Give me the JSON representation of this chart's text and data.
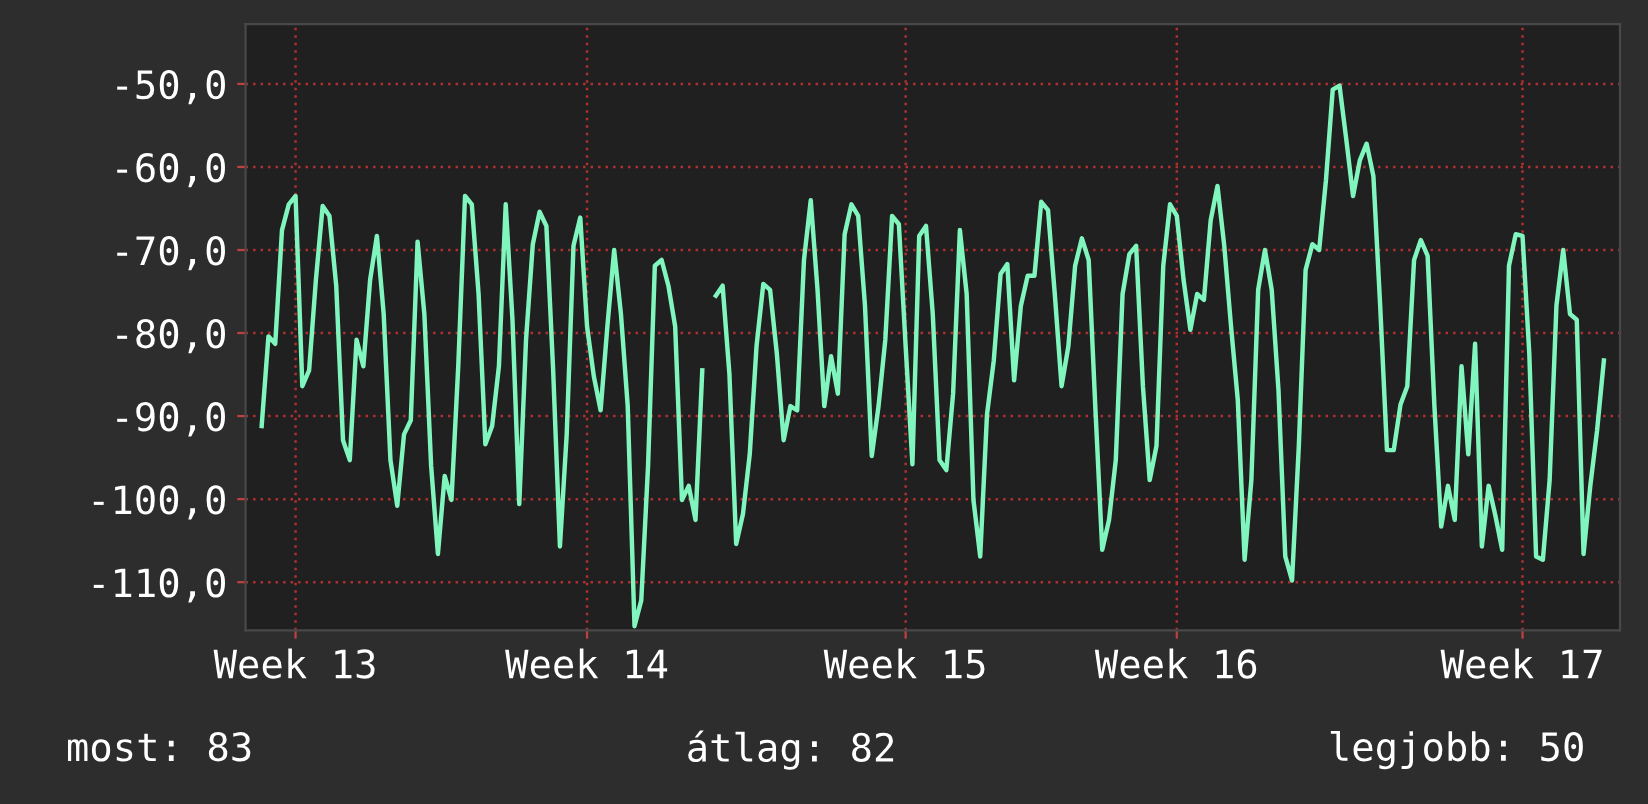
{
  "chart_data": {
    "type": "line",
    "categories": [
      null,
      null,
      null,
      null,
      null,
      "Week 13",
      null,
      null,
      null,
      null,
      null,
      null,
      null,
      null,
      null,
      null,
      null,
      null,
      null,
      null,
      null,
      null,
      null,
      null,
      null,
      null,
      null,
      null,
      null,
      null,
      null,
      null,
      null,
      null,
      null,
      null,
      null,
      null,
      null,
      null,
      null,
      null,
      null,
      null,
      null,
      null,
      null,
      null,
      "Week 14",
      null,
      null,
      null,
      null,
      null,
      null,
      null,
      null,
      null,
      null,
      null,
      null,
      null,
      null,
      null,
      null,
      null,
      null,
      null,
      null,
      null,
      null,
      null,
      null,
      null,
      null,
      null,
      null,
      null,
      null,
      null,
      null,
      null,
      null,
      null,
      null,
      null,
      null,
      null,
      null,
      null,
      null,
      null,
      null,
      null,
      null,
      "Week 15",
      null,
      null,
      null,
      null,
      null,
      null,
      null,
      null,
      null,
      null,
      null,
      null,
      null,
      null,
      null,
      null,
      null,
      null,
      null,
      null,
      null,
      null,
      null,
      null,
      null,
      null,
      null,
      null,
      null,
      null,
      null,
      null,
      null,
      null,
      null,
      null,
      null,
      null,
      null,
      "Week 16",
      null,
      null,
      null,
      null,
      null,
      null,
      null,
      null,
      null,
      null,
      null,
      null,
      null,
      null,
      null,
      null,
      null,
      null,
      null,
      null,
      null,
      null,
      null,
      null,
      null,
      null,
      null,
      null,
      null,
      null,
      null,
      null,
      null,
      null,
      null,
      null,
      null,
      null,
      null,
      null,
      null,
      null,
      null,
      null,
      null,
      null,
      null,
      null,
      null,
      null,
      "Week 17",
      null,
      null,
      null,
      null,
      null,
      null,
      null,
      null,
      null,
      null,
      null,
      null
    ],
    "series": [
      {
        "color": "#80f5bd",
        "values": [
          -91.2,
          -80.4,
          -81.3,
          -67.6,
          -64.5,
          -63.5,
          -86.4,
          -84.5,
          -73.6,
          -64.7,
          -65.9,
          -74.3,
          -92.9,
          -95.3,
          -80.8,
          -84.0,
          -73.6,
          -68.3,
          -77.7,
          -95.3,
          -100.8,
          -92.2,
          -90.5,
          -69.0,
          -77.7,
          -96.0,
          -106.6,
          -97.2,
          -100.1,
          -84.0,
          -63.5,
          -64.5,
          -75.3,
          -93.4,
          -91.2,
          -84.0,
          -64.5,
          -78.4,
          -100.6,
          -80.8,
          -69.3,
          -65.4,
          -67.1,
          -84.5,
          -105.7,
          -92.2,
          -69.5,
          -66.1,
          -79.2,
          -85.2,
          -89.3,
          -79.2,
          -70.0,
          -77.7,
          -88.8,
          -115.3,
          -112.2,
          -96.0,
          -71.9,
          -71.2,
          -74.3,
          -79.2,
          -100.1,
          -98.4,
          -102.5,
          -84.5,
          null,
          -75.5,
          -74.3,
          -84.9,
          -105.4,
          -101.8,
          -94.6,
          -81.6,
          -74.1,
          -74.8,
          -82.5,
          -92.9,
          -88.8,
          -89.3,
          -71.2,
          -64.0,
          -74.8,
          -88.8,
          -82.8,
          -87.3,
          -68.1,
          -64.5,
          -65.9,
          -76.7,
          -94.8,
          -88.8,
          -80.8,
          -65.9,
          -66.9,
          -81.6,
          -95.8,
          -68.3,
          -67.1,
          -77.7,
          -95.3,
          -96.5,
          -87.3,
          -67.6,
          -75.3,
          -100.1,
          -106.9,
          -89.8,
          -83.3,
          -72.9,
          -71.7,
          -85.7,
          -76.7,
          -73.1,
          -73.1,
          -64.2,
          -65.2,
          -75.3,
          -86.4,
          -81.6,
          -71.9,
          -68.6,
          -71.2,
          -89.3,
          -106.1,
          -102.5,
          -95.3,
          -75.3,
          -70.5,
          -69.5,
          -86.4,
          -97.7,
          -93.6,
          -71.9,
          -64.5,
          -65.9,
          -73.6,
          -79.6,
          -75.3,
          -76.0,
          -66.4,
          -62.3,
          -69.5,
          -79.2,
          -88.1,
          -107.3,
          -97.7,
          -74.8,
          -70.0,
          -74.8,
          -86.9,
          -106.9,
          -109.8,
          -93.6,
          -72.4,
          -69.3,
          -70.0,
          -61.6,
          -50.7,
          -50.2,
          -56.7,
          -63.5,
          -59.2,
          -57.2,
          -61.1,
          -76.7,
          -94.1,
          -94.1,
          -88.6,
          -86.4,
          -71.2,
          -68.8,
          -70.7,
          -88.8,
          -103.3,
          -98.4,
          -102.5,
          -84.0,
          -94.6,
          -81.3,
          -105.7,
          -98.4,
          -102.0,
          -106.1,
          -71.9,
          -68.1,
          -68.3,
          -82.5,
          -106.9,
          -107.3,
          -97.7,
          -76.7,
          -70.0,
          -77.7,
          -78.4,
          -106.6,
          -98.4,
          -91.7,
          -83.3
        ]
      }
    ],
    "ylim": [
      -115.8,
      -42.8
    ],
    "yticks": [
      {
        "value": -110,
        "label": "-110,0"
      },
      {
        "value": -100,
        "label": "-100,0"
      },
      {
        "value": -90,
        "label": "-90,0"
      },
      {
        "value": -80,
        "label": "-80,0"
      },
      {
        "value": -70,
        "label": "-70,0"
      },
      {
        "value": -60,
        "label": "-60,0"
      },
      {
        "value": -50,
        "label": "-50,0"
      }
    ],
    "grid": true,
    "annotations": [
      "most: 83",
      "átlag: 82",
      "legjobb: 50"
    ]
  }
}
